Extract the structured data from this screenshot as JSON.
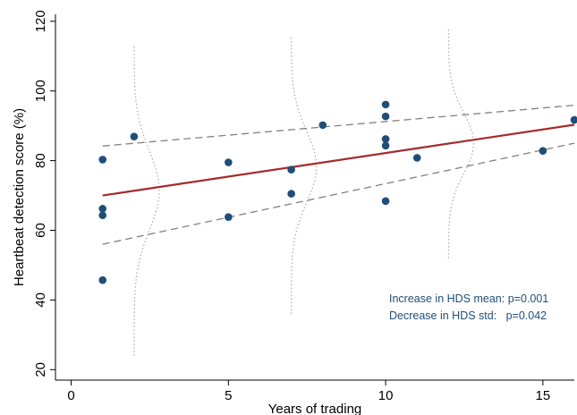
{
  "chart_data": {
    "type": "scatter",
    "title": "",
    "xlabel": "Years of trading",
    "ylabel": "Heartbeat detection score (%)",
    "xlim": [
      -0.5,
      16
    ],
    "ylim": [
      17,
      122
    ],
    "xticks": [
      0,
      5,
      10,
      15
    ],
    "yticks": [
      20,
      40,
      60,
      80,
      100,
      120
    ],
    "grid": false,
    "colors": {
      "points": "#1f4e79",
      "fit_line": "#a52a2a",
      "ci_lines": "#808080",
      "distribution_curves": "#aaaaaa",
      "annotation_text": "#1f4e79"
    },
    "points": [
      {
        "x": 1,
        "y": 80.3
      },
      {
        "x": 1,
        "y": 66.2
      },
      {
        "x": 1,
        "y": 64.3
      },
      {
        "x": 1,
        "y": 45.7
      },
      {
        "x": 2,
        "y": 86.9
      },
      {
        "x": 5,
        "y": 79.5
      },
      {
        "x": 5,
        "y": 63.8
      },
      {
        "x": 7,
        "y": 77.4
      },
      {
        "x": 7,
        "y": 70.5
      },
      {
        "x": 8,
        "y": 90.2
      },
      {
        "x": 10,
        "y": 96.1
      },
      {
        "x": 10,
        "y": 92.7
      },
      {
        "x": 10,
        "y": 86.2
      },
      {
        "x": 10,
        "y": 84.3
      },
      {
        "x": 10,
        "y": 68.4
      },
      {
        "x": 11,
        "y": 80.8
      },
      {
        "x": 15,
        "y": 82.8
      },
      {
        "x": 16,
        "y": 91.7
      }
    ],
    "fit_line": {
      "x": [
        1,
        16
      ],
      "y": [
        70.0,
        90.3
      ]
    },
    "ci_upper": {
      "x": [
        1,
        16
      ],
      "y": [
        84.2,
        95.9
      ]
    },
    "ci_lower": {
      "x": [
        1,
        16
      ],
      "y": [
        56.0,
        85.0
      ]
    },
    "distribution_curves": [
      {
        "center_x": 2,
        "mean": 71.4,
        "sd": 11.4,
        "y_range": [
          24,
          113
        ],
        "width": 0.8
      },
      {
        "center_x": 7,
        "mean": 78.2,
        "sd": 10.3,
        "y_range": [
          36,
          116
        ],
        "width": 0.8
      },
      {
        "center_x": 12,
        "mean": 85.0,
        "sd": 8.7,
        "y_range": [
          52,
          118
        ],
        "width": 0.8
      }
    ],
    "annotations": [
      "Increase in HDS mean: p=0.001",
      "Decrease in HDS std:   p=0.042"
    ]
  }
}
